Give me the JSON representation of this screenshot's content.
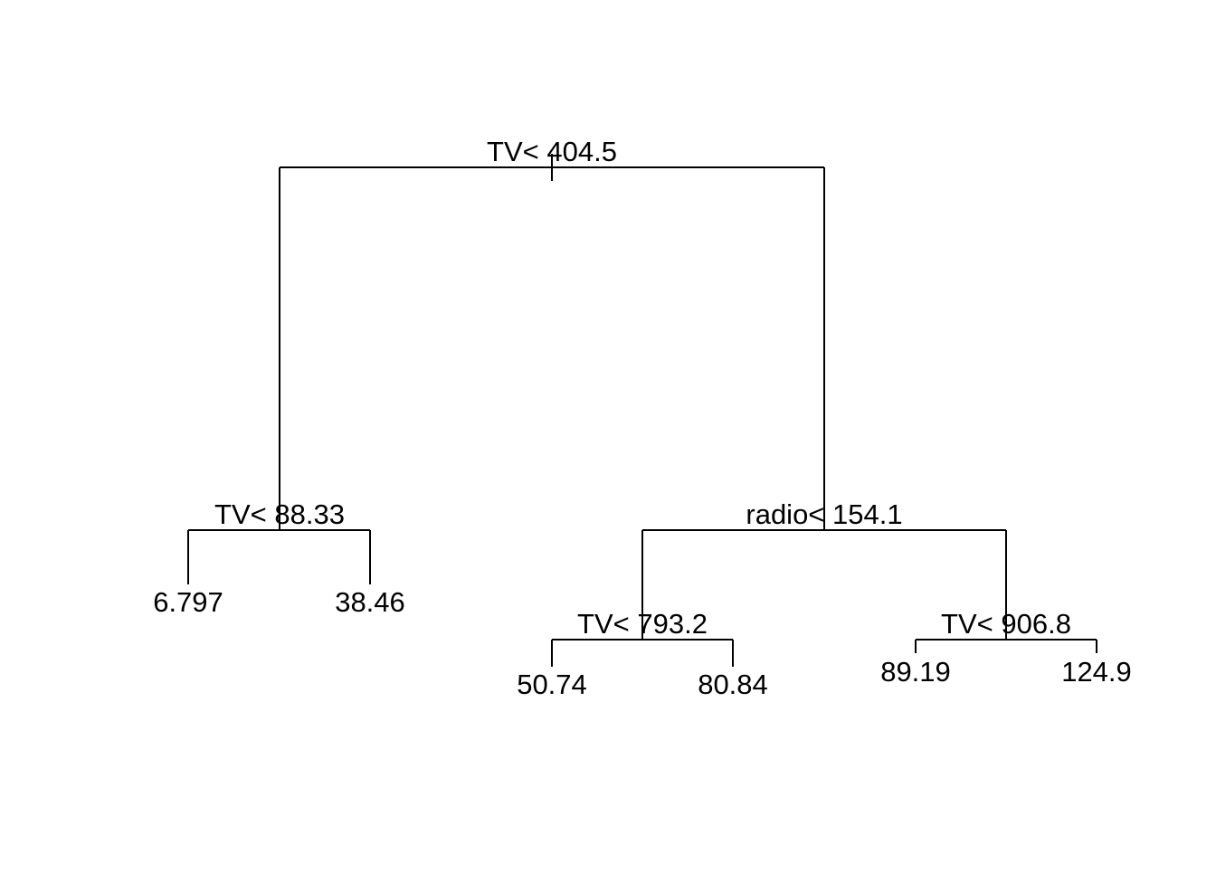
{
  "tree": {
    "splits": [
      {
        "id": "root",
        "label": "TV< 404.5"
      },
      {
        "id": "left",
        "label": "TV< 88.33"
      },
      {
        "id": "right",
        "label": "radio< 154.1"
      },
      {
        "id": "right_left",
        "label": "TV< 793.2"
      },
      {
        "id": "right_right",
        "label": "TV< 906.8"
      }
    ],
    "leaves": [
      {
        "id": "leaf_1",
        "value": "6.797"
      },
      {
        "id": "leaf_2",
        "value": "38.46"
      },
      {
        "id": "leaf_3",
        "value": "50.74"
      },
      {
        "id": "leaf_4",
        "value": "80.84"
      },
      {
        "id": "leaf_5",
        "value": "89.19"
      },
      {
        "id": "leaf_6",
        "value": "124.9"
      }
    ]
  }
}
